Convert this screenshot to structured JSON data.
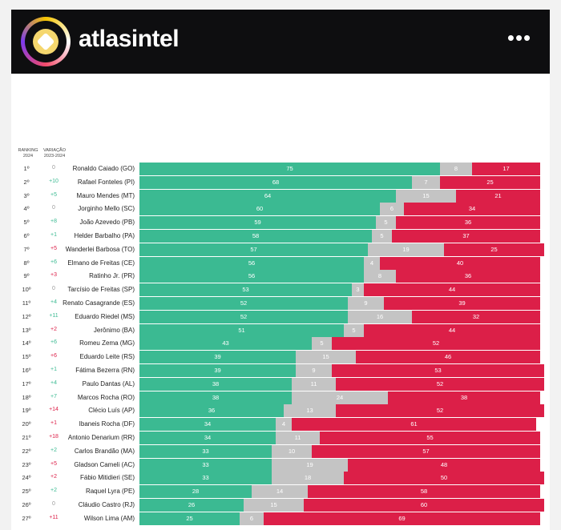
{
  "app": {
    "brand": "atlasintel",
    "more_label": "•••"
  },
  "headers": {
    "ranking": "RANKING 2024",
    "variacao": "VARIAÇÃO 2023-2024"
  },
  "colors": {
    "positive": "#3bba92",
    "neutral": "#c4c4c4",
    "negative": "#dc1f48"
  },
  "chart_data": {
    "type": "bar",
    "stacked": true,
    "orientation": "horizontal",
    "categories": [
      "Ronaldo Caiado (GO)",
      "Rafael Fonteles (PI)",
      "Mauro Mendes (MT)",
      "Jorginho Mello (SC)",
      "João Azevedo (PB)",
      "Helder Barbalho (PA)",
      "Wanderlei Barbosa (TO)",
      "Elmano de Freitas (CE)",
      "Ratinho Jr. (PR)",
      "Tarcísio de Freitas (SP)",
      "Renato Casagrande (ES)",
      "Eduardo Riedel (MS)",
      "Jerônimo (BA)",
      "Romeu Zema (MG)",
      "Eduardo Leite (RS)",
      "Fátima Bezerra (RN)",
      "Paulo Dantas (AL)",
      "Marcos Rocha (RO)",
      "Clécio Luís (AP)",
      "Ibaneis Rocha (DF)",
      "Antonio Denarium (RR)",
      "Carlos Brandão (MA)",
      "Gladson Cameli (AC)",
      "Fábio Mitidieri (SE)",
      "Raquel Lyra (PE)",
      "Cláudio Castro (RJ)",
      "Wilson Lima (AM)"
    ],
    "ranks": [
      "1º",
      "2º",
      "3º",
      "4º",
      "5º",
      "6º",
      "7º",
      "8º",
      "9º",
      "10º",
      "11º",
      "12º",
      "13º",
      "14º",
      "15º",
      "16º",
      "17º",
      "18º",
      "19º",
      "20º",
      "21º",
      "22º",
      "23º",
      "24º",
      "25º",
      "26º",
      "27º"
    ],
    "variation": [
      "0",
      "+10",
      "+5",
      "0",
      "+8",
      "+1",
      "+5",
      "+6",
      "+3",
      "0",
      "+4",
      "+11",
      "+2",
      "+6",
      "+6",
      "+1",
      "+4",
      "+7",
      "+14",
      "+1",
      "+18",
      "+2",
      "+5",
      "+2",
      "+2",
      "0",
      "+11"
    ],
    "variation_direction": [
      "zero",
      "up",
      "up",
      "zero",
      "up",
      "up",
      "down",
      "up",
      "down",
      "zero",
      "up",
      "up",
      "down",
      "up",
      "down",
      "up",
      "up",
      "up",
      "down",
      "down",
      "down",
      "up",
      "down",
      "down",
      "up",
      "zero",
      "down"
    ],
    "series": [
      {
        "values": [
          75,
          68,
          64,
          60,
          59,
          58,
          57,
          56,
          56,
          53,
          52,
          52,
          51,
          43,
          39,
          39,
          38,
          38,
          36,
          34,
          34,
          33,
          33,
          33,
          28,
          26,
          25
        ]
      },
      {
        "values": [
          8,
          7,
          15,
          6,
          5,
          5,
          19,
          4,
          8,
          3,
          9,
          16,
          5,
          5,
          15,
          9,
          11,
          24,
          13,
          4,
          11,
          10,
          19,
          18,
          14,
          15,
          6
        ]
      },
      {
        "values": [
          17,
          25,
          21,
          34,
          36,
          37,
          25,
          40,
          36,
          44,
          39,
          32,
          44,
          52,
          46,
          53,
          52,
          38,
          52,
          61,
          55,
          57,
          48,
          50,
          58,
          60,
          69
        ]
      }
    ],
    "xlim": [
      0,
      100
    ]
  }
}
